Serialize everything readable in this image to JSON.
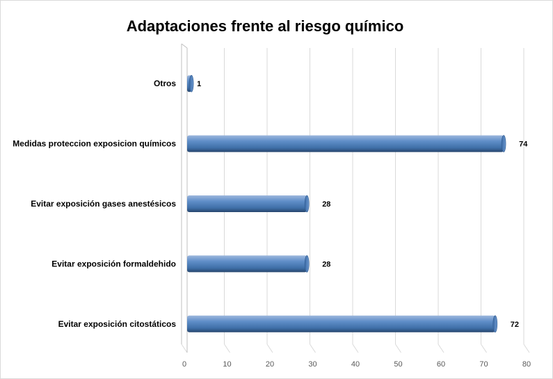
{
  "chart_data": {
    "type": "bar",
    "orientation": "horizontal",
    "title": "Adaptaciones frente al riesgo químico",
    "xlabel": "",
    "ylabel": "",
    "categories": [
      "Otros",
      "Medidas proteccion exposicion químicos",
      "Evitar exposición gases anestésicos",
      "Evitar exposición formaldehido",
      "Evitar exposición citostáticos"
    ],
    "values": [
      1,
      74,
      28,
      28,
      72
    ],
    "xlim": [
      0,
      80
    ],
    "ticks": [
      "0",
      "10",
      "20",
      "30",
      "40",
      "50",
      "60",
      "70",
      "80"
    ],
    "grid": true,
    "legend": "none",
    "bar_color": "#4f81bd"
  }
}
